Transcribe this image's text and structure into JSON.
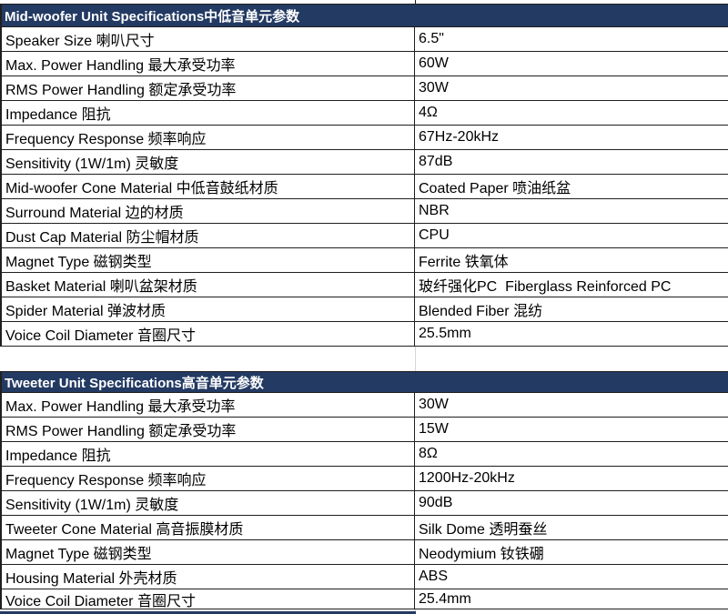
{
  "accent_color": "#233a63",
  "border_color": "#1f1f1f",
  "tables": [
    {
      "header": "Mid-woofer Unit Specifications中低音单元参数",
      "rows": [
        {
          "label": "Speaker Size 喇叭尺寸",
          "value": "6.5\""
        },
        {
          "label": "Max. Power Handling 最大承受功率",
          "value": "60W"
        },
        {
          "label": "RMS Power Handling 额定承受功率",
          "value": "30W"
        },
        {
          "label": "Impedance 阻抗",
          "value": "4Ω"
        },
        {
          "label": "Frequency Response 频率响应",
          "value": "67Hz-20kHz"
        },
        {
          "label": "Sensitivity (1W/1m) 灵敏度",
          "value": "87dB"
        },
        {
          "label": "Mid-woofer Cone Material 中低音鼓纸材质",
          "value": "Coated Paper 喷油纸盆"
        },
        {
          "label": "Surround Material 边的材质",
          "value": "NBR"
        },
        {
          "label": "Dust Cap Material 防尘帽材质",
          "value": "CPU"
        },
        {
          "label": "Magnet Type 磁钢类型",
          "value": "Ferrite 铁氧体"
        },
        {
          "label": "Basket Material 喇叭盆架材质",
          "value": "玻纤强化PC  Fiberglass Reinforced PC"
        },
        {
          "label": "Spider Material 弹波材质",
          "value": "Blended Fiber 混纺"
        },
        {
          "label": "Voice Coil Diameter 音圈尺寸",
          "value": "25.5mm"
        }
      ]
    },
    {
      "header": "Tweeter Unit Specifications高音单元参数",
      "rows": [
        {
          "label": "Max. Power Handling 最大承受功率",
          "value": "30W"
        },
        {
          "label": "RMS Power Handling 额定承受功率",
          "value": "15W"
        },
        {
          "label": "Impedance 阻抗",
          "value": "8Ω"
        },
        {
          "label": "Frequency Response 频率响应",
          "value": "1200Hz-20kHz"
        },
        {
          "label": "Sensitivity (1W/1m) 灵敏度",
          "value": "90dB"
        },
        {
          "label": "Tweeter Cone Material 高音振膜材质",
          "value": "Silk Dome 透明蚕丝"
        },
        {
          "label": "Magnet Type 磁钢类型",
          "value": "Neodymium 钕铁硼"
        },
        {
          "label": "Housing Material 外壳材质",
          "value": "ABS"
        },
        {
          "label": "Voice Coil Diameter 音圈尺寸",
          "value": "25.4mm"
        }
      ]
    }
  ]
}
